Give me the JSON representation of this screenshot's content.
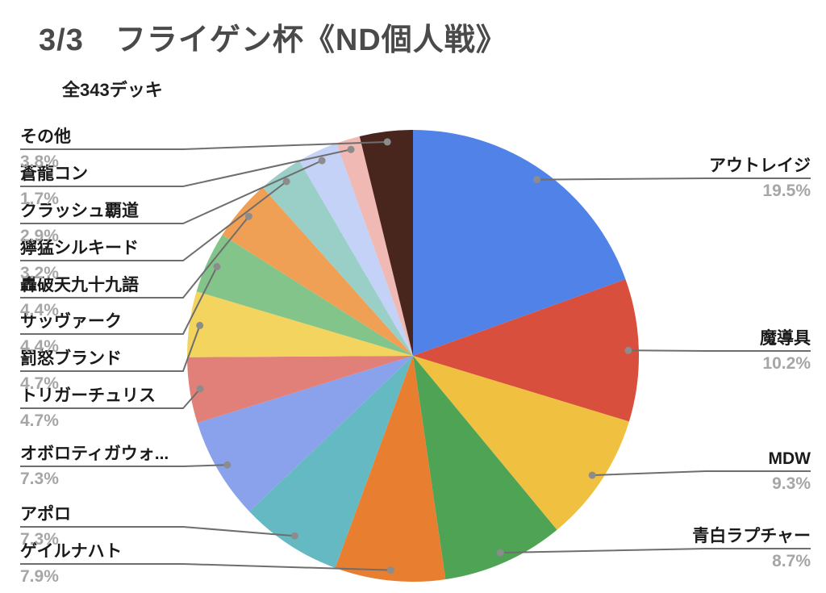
{
  "header": {
    "title": "3/3　フライゲン杯《ND個人戦》",
    "total_label": "全343デッキ"
  },
  "chart_data": {
    "type": "pie",
    "title": "3/3　フライゲン杯《ND個人戦》",
    "subtitle": "全343デッキ",
    "total_decks": 343,
    "unit": "%",
    "start_angle_deg": -90,
    "direction": "clockwise",
    "labels_style": "outside labels with gray leader lines and dots",
    "slices": [
      {
        "label": "アウトレイジ",
        "value": 19.5,
        "pct_label": "19.5%",
        "color": "#5082E8"
      },
      {
        "label": "魔導具",
        "value": 10.2,
        "pct_label": "10.2%",
        "color": "#D94F3D"
      },
      {
        "label": "MDW",
        "value": 9.3,
        "pct_label": "9.3%",
        "color": "#F0C140"
      },
      {
        "label": "青白ラプチャー",
        "value": 8.7,
        "pct_label": "8.7%",
        "color": "#4FA354"
      },
      {
        "label": "ゲイルナハト",
        "value": 7.9,
        "pct_label": "7.9%",
        "color": "#E87E2F"
      },
      {
        "label": "アポロ",
        "value": 7.3,
        "pct_label": "7.3%",
        "color": "#65B9C2"
      },
      {
        "label": "オボロティガウォ...",
        "value": 7.3,
        "pct_label": "7.3%",
        "color": "#8AA2EC"
      },
      {
        "label": "トリガーチュリス",
        "value": 4.7,
        "pct_label": "4.7%",
        "color": "#E08078"
      },
      {
        "label": "罰怒ブランド",
        "value": 4.7,
        "pct_label": "4.7%",
        "color": "#F2D45F"
      },
      {
        "label": "サッヴァーク",
        "value": 4.4,
        "pct_label": "4.4%",
        "color": "#82C489"
      },
      {
        "label": "轟破天九十九語",
        "value": 4.4,
        "pct_label": "4.4%",
        "color": "#F0A055"
      },
      {
        "label": "獰猛シルキード",
        "value": 3.2,
        "pct_label": "3.2%",
        "color": "#99CFC7"
      },
      {
        "label": "クラッシュ覇道",
        "value": 2.9,
        "pct_label": "2.9%",
        "color": "#C3D2F6"
      },
      {
        "label": "蒼龍コン",
        "value": 1.7,
        "pct_label": "1.7%",
        "color": "#F0B9B3"
      },
      {
        "label": "その他",
        "value": 3.8,
        "pct_label": "3.8%",
        "color": "#48261D"
      }
    ]
  },
  "style": {
    "background": "#FFFFFF",
    "title_color": "#4A4A4A",
    "subtitle_color": "#1E1E1E",
    "label_color": "#1A1A1A",
    "pct_color": "#A6A6A6",
    "leader_line_color": "#6E6E6E",
    "leader_dot_color": "#8C8C8C"
  }
}
